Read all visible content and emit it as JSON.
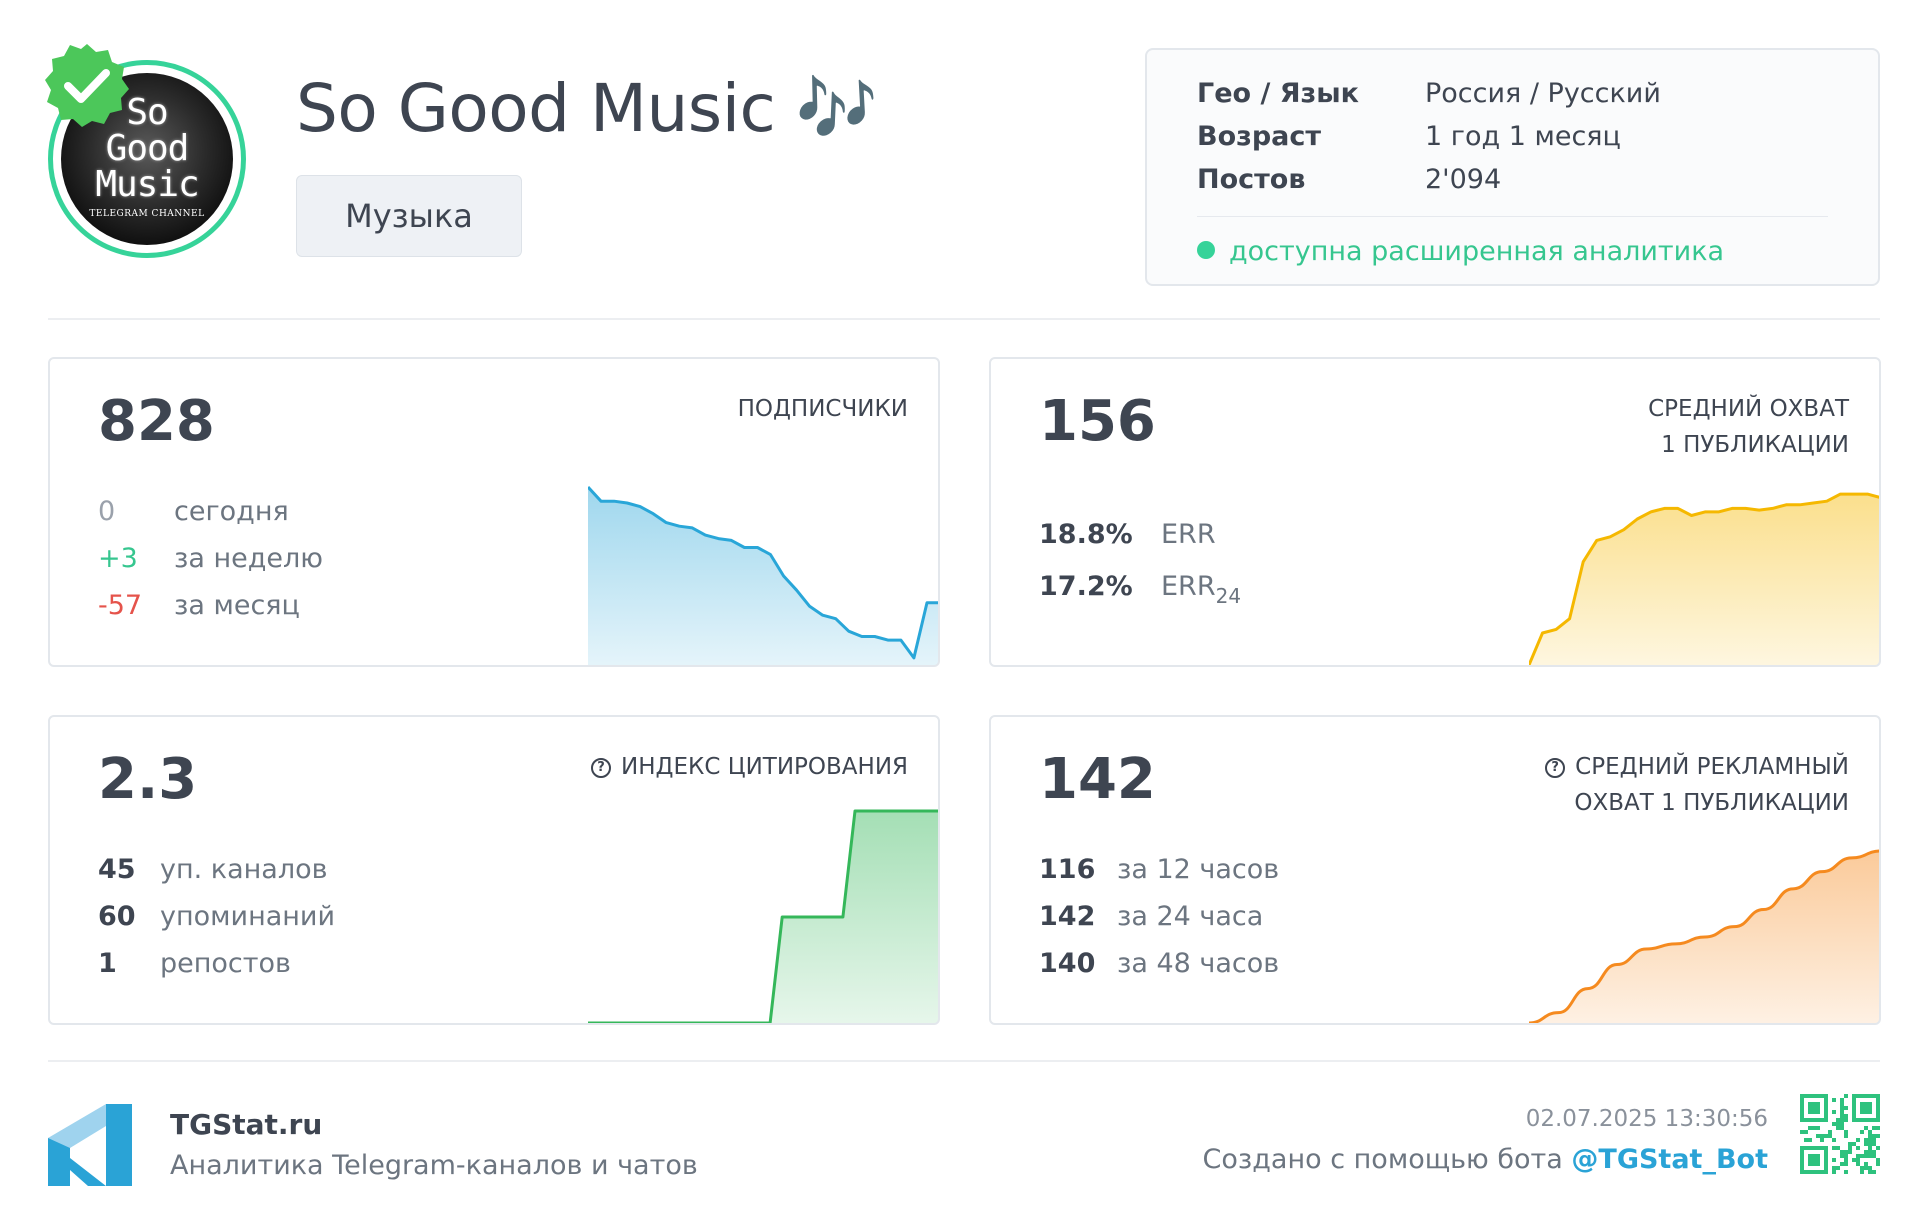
{
  "channel": {
    "title": "So Good Music 🎶",
    "category": "Музыка",
    "avatar": {
      "line1": "So",
      "line2": "Good",
      "line3": "Music",
      "subtitle": "TELEGRAM CHANNEL"
    },
    "verified_icon": "verified-badge-icon"
  },
  "info": {
    "geo_label": "Гео / Язык",
    "geo_value": "Россия / Русский",
    "age_label": "Возраст",
    "age_value": "1 год 1 месяц",
    "posts_label": "Постов",
    "posts_value": "2'094",
    "analytics_text": "доступна расширенная аналитика"
  },
  "cards": {
    "subscribers": {
      "value": "828",
      "label": "ПОДПИСЧИКИ",
      "stats": [
        {
          "n": "0",
          "t": "сегодня",
          "tone": "gray"
        },
        {
          "n": "+3",
          "t": "за неделю",
          "tone": "green"
        },
        {
          "n": "-57",
          "t": "за месяц",
          "tone": "red"
        }
      ]
    },
    "reach": {
      "value": "156",
      "label_line1": "СРЕДНИЙ ОХВАТ",
      "label_line2": "1 ПУБЛИКАЦИИ",
      "err_value": "18.8%",
      "err_label": "ERR",
      "err24_value": "17.2%",
      "err24_label": "ERR",
      "err24_sub": "24"
    },
    "citation": {
      "value": "2.3",
      "label": "ИНДЕКС ЦИТИРОВАНИЯ",
      "stats": [
        {
          "n": "45",
          "t": "уп. каналов"
        },
        {
          "n": "60",
          "t": "упоминаний"
        },
        {
          "n": "1",
          "t": "репостов"
        }
      ]
    },
    "ad_reach": {
      "value": "142",
      "label_line1": "СРЕДНИЙ РЕКЛАМНЫЙ",
      "label_line2": "ОХВАТ 1 ПУБЛИКАЦИИ",
      "stats": [
        {
          "n": "116",
          "t": "за 12 часов"
        },
        {
          "n": "142",
          "t": "за 24 часа"
        },
        {
          "n": "140",
          "t": "за 48 часов"
        }
      ]
    }
  },
  "footer": {
    "brand": "TGStat.ru",
    "tagline": "Аналитика Telegram-каналов и чатов",
    "timestamp": "02.07.2025 13:30:56",
    "created_prefix": "Создано с помощью бота ",
    "bot": "@TGStat_Bot"
  },
  "colors": {
    "accent_green": "#36d399",
    "subscribers_line": "#29a6d8",
    "reach_line": "#f5b800",
    "citation_line": "#35b75a",
    "ad_reach_line": "#f58a1f",
    "negative": "#e5534b"
  },
  "chart_data": [
    {
      "type": "area",
      "series": [
        {
          "values": [
            1.0,
            0.92,
            0.92,
            0.91,
            0.89,
            0.85,
            0.8,
            0.78,
            0.77,
            0.73,
            0.71,
            0.7,
            0.66,
            0.66,
            0.62,
            0.5,
            0.42,
            0.33,
            0.28,
            0.26,
            0.19,
            0.16,
            0.16,
            0.14,
            0.14,
            0.04,
            0.35,
            0.35
          ]
        }
      ]
    },
    {
      "type": "area",
      "series": [
        {
          "values": [
            0.0,
            0.18,
            0.2,
            0.26,
            0.58,
            0.7,
            0.72,
            0.76,
            0.82,
            0.86,
            0.88,
            0.88,
            0.84,
            0.86,
            0.86,
            0.88,
            0.88,
            0.87,
            0.88,
            0.9,
            0.9,
            0.91,
            0.92,
            0.96,
            0.96,
            0.96,
            0.94
          ]
        }
      ]
    },
    {
      "type": "area",
      "series": [
        {
          "values": [
            0.0,
            0.0,
            0.0,
            0.0,
            0.0,
            0.0,
            0.0,
            0.0,
            0.0,
            0.0,
            0.0,
            0.0,
            0.0,
            0.0,
            0.0,
            0.0,
            0.5,
            0.5,
            0.5,
            0.5,
            0.5,
            0.5,
            1.0,
            1.0,
            1.0,
            1.0,
            1.0,
            1.0,
            1.0,
            1.0
          ]
        }
      ]
    },
    {
      "type": "area",
      "series": [
        {
          "values": [
            0.0,
            0.06,
            0.2,
            0.34,
            0.43,
            0.46,
            0.5,
            0.56,
            0.66,
            0.78,
            0.88,
            0.96,
            1.0
          ]
        }
      ]
    }
  ]
}
